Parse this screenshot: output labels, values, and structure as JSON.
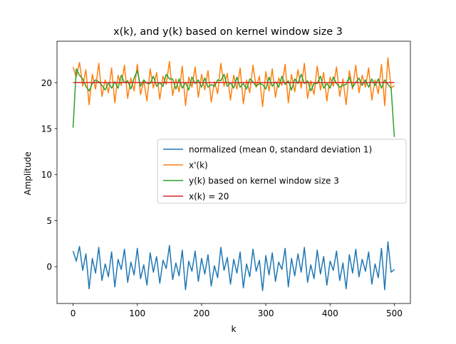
{
  "chart_data": {
    "type": "line",
    "title": "x(k), and y(k) based on kernel window size 3",
    "xlabel": "k",
    "ylabel": "Amplitude",
    "xlim": [
      -25,
      525
    ],
    "ylim": [
      -4,
      24.5
    ],
    "xticks": [
      0,
      100,
      200,
      300,
      400,
      500
    ],
    "yticks": [
      0,
      5,
      10,
      15,
      20
    ],
    "grid": false,
    "legend_position": "center-right",
    "series": [
      {
        "name": "normalized (mean 0, standard deviation 1)",
        "color": "#1f77b4",
        "x": [
          0,
          5,
          10,
          15,
          20,
          25,
          30,
          35,
          40,
          45,
          50,
          55,
          60,
          65,
          70,
          75,
          80,
          85,
          90,
          95,
          100,
          105,
          110,
          115,
          120,
          125,
          130,
          135,
          140,
          145,
          150,
          155,
          160,
          165,
          170,
          175,
          180,
          185,
          190,
          195,
          200,
          205,
          210,
          215,
          220,
          225,
          230,
          235,
          240,
          245,
          250,
          255,
          260,
          265,
          270,
          275,
          280,
          285,
          290,
          295,
          300,
          305,
          310,
          315,
          320,
          325,
          330,
          335,
          340,
          345,
          350,
          355,
          360,
          365,
          370,
          375,
          380,
          385,
          390,
          395,
          400,
          405,
          410,
          415,
          420,
          425,
          430,
          435,
          440,
          445,
          450,
          455,
          460,
          465,
          470,
          475,
          480,
          485,
          490,
          495,
          500
        ],
        "values": [
          1.7,
          0.6,
          2.2,
          -0.4,
          1.4,
          -2.4,
          0.9,
          -0.7,
          2.1,
          -1.5,
          0.3,
          -1.1,
          1.6,
          -2.2,
          0.8,
          -0.3,
          1.9,
          -1.7,
          0.5,
          -0.9,
          2.0,
          -1.3,
          0.2,
          -2.0,
          1.5,
          -0.6,
          1.1,
          -1.8,
          0.7,
          -0.2,
          2.3,
          -1.4,
          0.4,
          -1.0,
          1.8,
          -2.5,
          0.6,
          -0.5,
          1.7,
          -1.6,
          0.9,
          -0.8,
          1.3,
          -2.1,
          0.1,
          -1.2,
          2.1,
          -0.4,
          1.0,
          -1.9,
          0.8,
          -0.7,
          1.6,
          -2.3,
          0.3,
          -1.1,
          1.9,
          -0.5,
          0.7,
          -2.6,
          1.2,
          -0.9,
          1.5,
          -1.6,
          0.5,
          -0.3,
          2.0,
          -2.2,
          0.9,
          -1.0,
          1.4,
          -0.6,
          2.1,
          -1.7,
          0.2,
          -1.3,
          1.8,
          -0.8,
          1.1,
          -2.0,
          0.6,
          -0.4,
          1.7,
          -1.5,
          0.4,
          -2.4,
          1.3,
          -0.7,
          1.9,
          -1.1,
          0.8,
          -0.5,
          1.6,
          -1.9,
          0.3,
          -1.2,
          2.0,
          -2.5,
          2.7,
          -0.6,
          -0.3
        ]
      },
      {
        "name": "x'(k)",
        "color": "#ff7f0e",
        "x": [
          0,
          5,
          10,
          15,
          20,
          25,
          30,
          35,
          40,
          45,
          50,
          55,
          60,
          65,
          70,
          75,
          80,
          85,
          90,
          95,
          100,
          105,
          110,
          115,
          120,
          125,
          130,
          135,
          140,
          145,
          150,
          155,
          160,
          165,
          170,
          175,
          180,
          185,
          190,
          195,
          200,
          205,
          210,
          215,
          220,
          225,
          230,
          235,
          240,
          245,
          250,
          255,
          260,
          265,
          270,
          275,
          280,
          285,
          290,
          295,
          300,
          305,
          310,
          315,
          320,
          325,
          330,
          335,
          340,
          345,
          350,
          355,
          360,
          365,
          370,
          375,
          380,
          385,
          390,
          395,
          400,
          405,
          410,
          415,
          420,
          425,
          430,
          435,
          440,
          445,
          450,
          455,
          460,
          465,
          470,
          475,
          480,
          485,
          490,
          495,
          500
        ],
        "values": [
          21.7,
          20.6,
          22.2,
          19.6,
          21.4,
          17.6,
          20.9,
          19.3,
          22.1,
          18.5,
          20.3,
          18.9,
          21.6,
          17.8,
          20.8,
          19.7,
          21.9,
          18.3,
          20.5,
          19.1,
          22.0,
          18.7,
          20.2,
          18.0,
          21.5,
          19.4,
          21.1,
          18.2,
          20.7,
          19.8,
          22.3,
          18.6,
          20.4,
          19.0,
          21.8,
          17.5,
          20.6,
          19.5,
          21.7,
          18.4,
          20.9,
          19.2,
          21.3,
          17.9,
          20.1,
          18.8,
          22.1,
          19.6,
          21.0,
          18.1,
          20.8,
          19.3,
          21.6,
          17.7,
          20.3,
          18.9,
          21.9,
          19.5,
          20.7,
          17.4,
          21.2,
          19.1,
          21.5,
          18.4,
          20.5,
          19.7,
          22.0,
          17.8,
          20.9,
          19.0,
          21.4,
          19.4,
          22.1,
          18.3,
          20.2,
          18.7,
          21.8,
          19.2,
          21.1,
          18.0,
          20.6,
          19.6,
          21.7,
          18.5,
          20.4,
          17.6,
          21.3,
          19.3,
          21.9,
          18.9,
          20.8,
          19.5,
          21.6,
          18.1,
          20.3,
          18.8,
          22.0,
          17.5,
          22.7,
          19.4,
          19.7
        ]
      },
      {
        "name": "y(k) based on kernel window size 3",
        "color": "#2ca02c",
        "x": [
          0,
          5,
          10,
          15,
          20,
          25,
          30,
          35,
          40,
          45,
          50,
          55,
          60,
          65,
          70,
          75,
          80,
          85,
          90,
          95,
          100,
          105,
          110,
          115,
          120,
          125,
          130,
          135,
          140,
          145,
          150,
          155,
          160,
          165,
          170,
          175,
          180,
          185,
          190,
          195,
          200,
          205,
          210,
          215,
          220,
          225,
          230,
          235,
          240,
          245,
          250,
          255,
          260,
          265,
          270,
          275,
          280,
          285,
          290,
          295,
          300,
          305,
          310,
          315,
          320,
          325,
          330,
          335,
          340,
          345,
          350,
          355,
          360,
          365,
          370,
          375,
          380,
          385,
          390,
          395,
          400,
          405,
          410,
          415,
          420,
          425,
          430,
          435,
          440,
          445,
          450,
          455,
          460,
          465,
          470,
          475,
          480,
          485,
          490,
          495,
          500
        ],
        "values": [
          15.1,
          21.5,
          20.8,
          20.4,
          19.6,
          19.1,
          19.9,
          20.3,
          20.1,
          19.7,
          19.2,
          20.0,
          19.4,
          20.1,
          19.4,
          20.8,
          20.0,
          20.2,
          19.3,
          20.5,
          21.3,
          19.6,
          20.3,
          19.9,
          19.9,
          20.7,
          19.6,
          20.0,
          19.6,
          20.9,
          20.4,
          20.4,
          19.3,
          20.4,
          19.4,
          20.0,
          19.2,
          20.6,
          19.9,
          20.3,
          19.5,
          20.5,
          19.5,
          19.8,
          19.6,
          20.3,
          20.2,
          20.9,
          19.6,
          20.0,
          19.4,
          20.6,
          19.5,
          19.9,
          19.3,
          20.4,
          20.1,
          19.6,
          19.9,
          19.8,
          19.3,
          20.6,
          19.6,
          20.1,
          19.5,
          20.7,
          19.8,
          20.2,
          19.2,
          20.4,
          19.9,
          20.9,
          19.9,
          20.2,
          19.1,
          19.9,
          19.9,
          20.7,
          19.4,
          19.9,
          19.4,
          20.6,
          19.9,
          19.5,
          19.7,
          19.8,
          20.6,
          19.5,
          20.0,
          20.5,
          19.7,
          20.3,
          19.5,
          20.4,
          19.7,
          20.4,
          19.4,
          20.3,
          19.8,
          19.4,
          14.1
        ]
      },
      {
        "name": "x(k) = 20",
        "color": "#d62728",
        "x": [
          0,
          500
        ],
        "values": [
          20,
          20
        ]
      }
    ]
  }
}
